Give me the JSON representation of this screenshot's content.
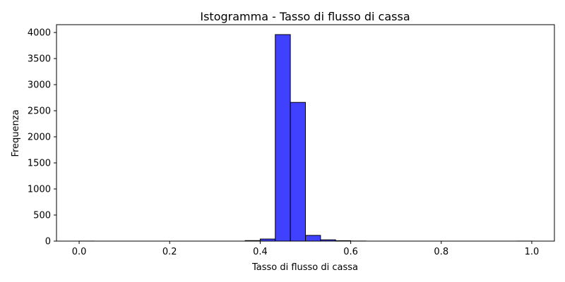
{
  "chart_data": {
    "type": "bar",
    "subtype": "histogram",
    "title": "Istogramma - Tasso di flusso di cassa",
    "xlabel": "Tasso di flusso di cassa",
    "ylabel": "Frequenza",
    "xlim": [
      -0.05,
      1.05
    ],
    "ylim": [
      0,
      4150
    ],
    "x_ticks": [
      "0.0",
      "0.2",
      "0.4",
      "0.6",
      "0.8",
      "1.0"
    ],
    "x_tick_values": [
      0.0,
      0.2,
      0.4,
      0.6,
      0.8,
      1.0
    ],
    "y_ticks": [
      "0",
      "500",
      "1000",
      "1500",
      "2000",
      "2500",
      "3000",
      "3500",
      "4000"
    ],
    "y_tick_values": [
      0,
      500,
      1000,
      1500,
      2000,
      2500,
      3000,
      3500,
      4000
    ],
    "bin_width": 0.0333,
    "bin_starts": [
      0.0,
      0.0333,
      0.0667,
      0.1,
      0.1333,
      0.1667,
      0.2,
      0.2333,
      0.2667,
      0.3,
      0.3333,
      0.3667,
      0.4,
      0.4333,
      0.4667,
      0.5,
      0.5333,
      0.5667,
      0.6,
      0.6333,
      0.6667,
      0.7,
      0.7333,
      0.7667,
      0.8,
      0.8333,
      0.8667,
      0.9,
      0.9333,
      0.9667
    ],
    "values": [
      1,
      0,
      0,
      0,
      0,
      0,
      0,
      0,
      0,
      0,
      0,
      10,
      40,
      3960,
      2660,
      110,
      25,
      8,
      2,
      0,
      0,
      0,
      0,
      0,
      0,
      0,
      0,
      0,
      0,
      1
    ],
    "grid": false,
    "bar_color": "#4040ff",
    "edge_color": "#000000"
  }
}
